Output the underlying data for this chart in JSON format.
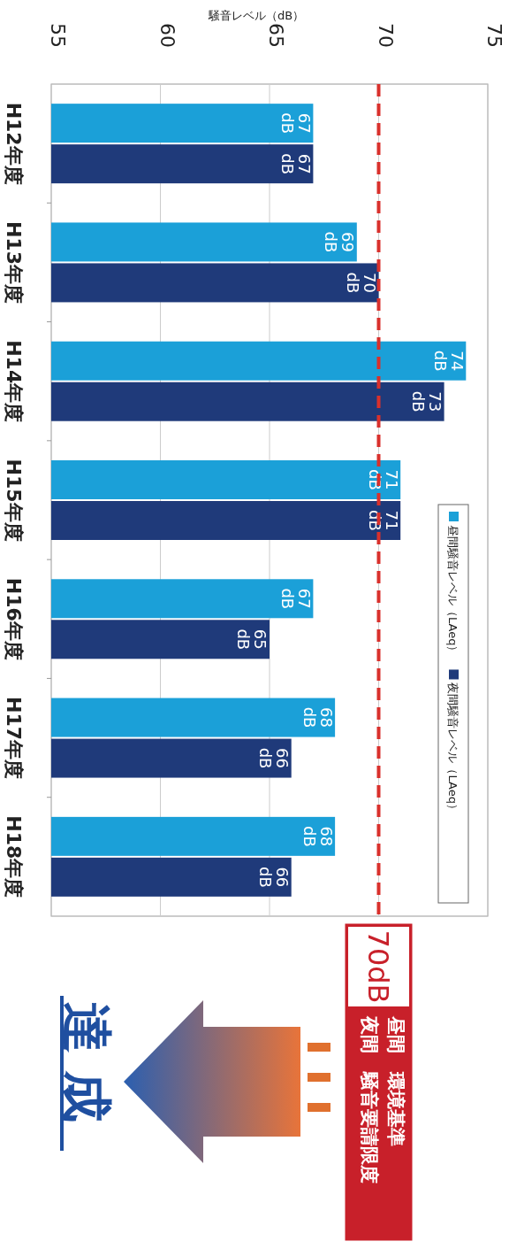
{
  "chart_data": {
    "type": "bar",
    "orientation": "horizontal",
    "xlabel": "騒音レベル（dB）",
    "categories": [
      "H12年度",
      "H13年度",
      "H14年度",
      "H15年度",
      "H16年度",
      "H17年度",
      "H18年度"
    ],
    "series": [
      {
        "name": "昼間騒音レベル（LAeq）",
        "color": "#1ba0d8",
        "values": [
          67,
          69,
          74,
          71,
          67,
          68,
          68
        ],
        "value_labels": [
          "67 dB",
          "69 dB",
          "74 dB",
          "71 dB",
          "67 dB",
          "68 dB",
          "68 dB"
        ]
      },
      {
        "name": "夜間騒音レベル（LAeq）",
        "color": "#1f3a7a",
        "values": [
          67,
          70,
          73,
          71,
          65,
          66,
          66
        ],
        "value_labels": [
          "67 dB",
          "70 dB",
          "73 dB",
          "71 dB",
          "65 dB",
          "66 dB",
          "66 dB"
        ]
      }
    ],
    "xlim": [
      55,
      75
    ],
    "xticks": [
      55,
      60,
      65,
      70,
      75
    ],
    "grid": "x",
    "legend": "bottom right",
    "ref_lines": [
      {
        "axis": "x",
        "value": 70,
        "color": "#d9302c",
        "line_style": "dashed"
      }
    ],
    "annotations": [
      "70dB",
      "昼間　環境基準",
      "夜間　騒音要請限度",
      "達成"
    ]
  }
}
